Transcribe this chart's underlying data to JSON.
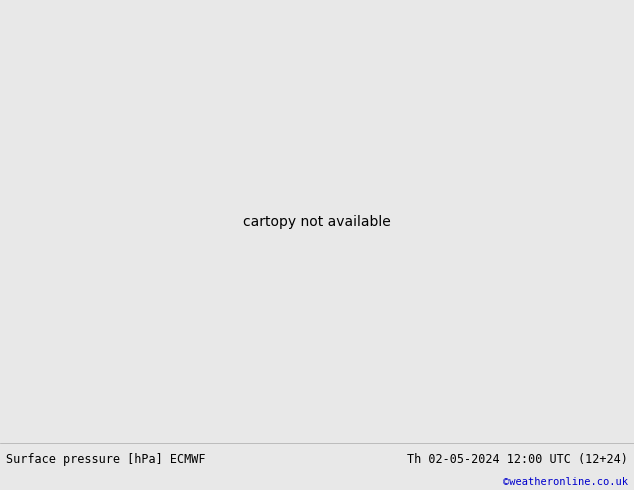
{
  "title_left": "Surface pressure [hPa] ECMWF",
  "title_right": "Th 02-05-2024 12:00 UTC (12+24)",
  "credit": "©weatheronline.co.uk",
  "ocean_color": "#d0dce8",
  "land_color": "#c8e8a8",
  "border_color": "#808080",
  "footer_bg": "#e8e8e8",
  "footer_text_color": "#000000",
  "credit_color": "#0000cc",
  "red_contour": "#cc0000",
  "blue_contour": "#0000bb",
  "black_contour": "#000000",
  "figsize": [
    6.34,
    4.9
  ],
  "dpi": 100,
  "lon_min": -45,
  "lon_max": 55,
  "lat_min": 25,
  "lat_max": 75
}
